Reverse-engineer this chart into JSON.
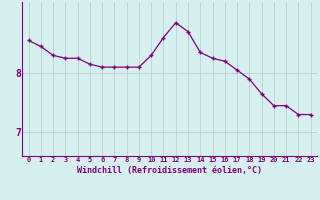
{
  "x": [
    0,
    1,
    2,
    3,
    4,
    5,
    6,
    7,
    8,
    9,
    10,
    11,
    12,
    13,
    14,
    15,
    16,
    17,
    18,
    19,
    20,
    21,
    22,
    23
  ],
  "y": [
    8.55,
    8.45,
    8.3,
    8.25,
    8.25,
    8.15,
    8.1,
    8.1,
    8.1,
    8.1,
    8.3,
    8.6,
    8.85,
    8.7,
    8.35,
    8.25,
    8.2,
    8.05,
    7.9,
    7.65,
    7.45,
    7.45,
    7.3,
    7.3
  ],
  "line_color": "#800080",
  "marker_color": "#800080",
  "bg_color": "#d6f0f0",
  "grid_color": "#b0c8c8",
  "axis_color": "#800080",
  "xlabel": "Windchill (Refroidissement éolien,°C)",
  "ylabel": "",
  "yticks": [
    7,
    8
  ],
  "ylim": [
    6.6,
    9.2
  ],
  "xlim": [
    -0.5,
    23.5
  ],
  "xticks": [
    0,
    1,
    2,
    3,
    4,
    5,
    6,
    7,
    8,
    9,
    10,
    11,
    12,
    13,
    14,
    15,
    16,
    17,
    18,
    19,
    20,
    21,
    22,
    23
  ],
  "figsize": [
    3.2,
    2.0
  ],
  "dpi": 100
}
